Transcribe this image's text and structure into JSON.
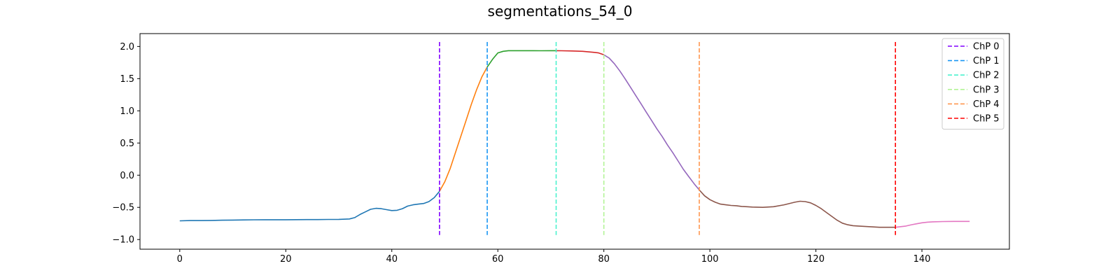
{
  "chart_data": {
    "type": "line",
    "title": "segmentations_54_0",
    "xlabel": "",
    "ylabel": "",
    "xlim": [
      -7.5,
      156.5
    ],
    "ylim": [
      -1.15,
      2.2
    ],
    "x_ticks": [
      0,
      20,
      40,
      60,
      80,
      100,
      120,
      140
    ],
    "y_ticks": [
      -1.0,
      -0.5,
      0.0,
      0.5,
      1.0,
      1.5,
      2.0
    ],
    "grid": false,
    "legend_position": "top-right",
    "series_points": [
      [
        0,
        -0.71
      ],
      [
        2,
        -0.705
      ],
      [
        4,
        -0.705
      ],
      [
        6,
        -0.703
      ],
      [
        8,
        -0.7
      ],
      [
        10,
        -0.697
      ],
      [
        12,
        -0.695
      ],
      [
        14,
        -0.693
      ],
      [
        16,
        -0.692
      ],
      [
        18,
        -0.692
      ],
      [
        20,
        -0.692
      ],
      [
        22,
        -0.691
      ],
      [
        24,
        -0.69
      ],
      [
        26,
        -0.69
      ],
      [
        28,
        -0.688
      ],
      [
        30,
        -0.687
      ],
      [
        32,
        -0.68
      ],
      [
        33,
        -0.66
      ],
      [
        34,
        -0.61
      ],
      [
        35,
        -0.57
      ],
      [
        36,
        -0.53
      ],
      [
        37,
        -0.515
      ],
      [
        38,
        -0.52
      ],
      [
        39,
        -0.535
      ],
      [
        40,
        -0.55
      ],
      [
        41,
        -0.545
      ],
      [
        42,
        -0.52
      ],
      [
        43,
        -0.48
      ],
      [
        44,
        -0.46
      ],
      [
        45,
        -0.45
      ],
      [
        46,
        -0.44
      ],
      [
        47,
        -0.41
      ],
      [
        48,
        -0.35
      ],
      [
        49,
        -0.25
      ],
      [
        50,
        -0.1
      ],
      [
        51,
        0.1
      ],
      [
        52,
        0.35
      ],
      [
        53,
        0.6
      ],
      [
        54,
        0.85
      ],
      [
        55,
        1.1
      ],
      [
        56,
        1.33
      ],
      [
        57,
        1.53
      ],
      [
        58,
        1.68
      ],
      [
        59,
        1.8
      ],
      [
        60,
        1.9
      ],
      [
        61,
        1.925
      ],
      [
        62,
        1.935
      ],
      [
        64,
        1.935
      ],
      [
        66,
        1.935
      ],
      [
        68,
        1.933
      ],
      [
        70,
        1.935
      ],
      [
        71,
        1.935
      ],
      [
        72,
        1.933
      ],
      [
        74,
        1.93
      ],
      [
        76,
        1.925
      ],
      [
        78,
        1.91
      ],
      [
        79,
        1.9
      ],
      [
        80,
        1.87
      ],
      [
        81,
        1.82
      ],
      [
        82,
        1.73
      ],
      [
        83,
        1.62
      ],
      [
        84,
        1.5
      ],
      [
        85,
        1.37
      ],
      [
        86,
        1.24
      ],
      [
        87,
        1.11
      ],
      [
        88,
        0.98
      ],
      [
        89,
        0.85
      ],
      [
        90,
        0.72
      ],
      [
        91,
        0.6
      ],
      [
        92,
        0.47
      ],
      [
        93,
        0.35
      ],
      [
        94,
        0.22
      ],
      [
        95,
        0.09
      ],
      [
        96,
        -0.02
      ],
      [
        97,
        -0.13
      ],
      [
        98,
        -0.23
      ],
      [
        99,
        -0.32
      ],
      [
        100,
        -0.38
      ],
      [
        101,
        -0.42
      ],
      [
        102,
        -0.45
      ],
      [
        103,
        -0.46
      ],
      [
        104,
        -0.47
      ],
      [
        105,
        -0.475
      ],
      [
        106,
        -0.485
      ],
      [
        107,
        -0.49
      ],
      [
        108,
        -0.495
      ],
      [
        110,
        -0.5
      ],
      [
        112,
        -0.49
      ],
      [
        114,
        -0.46
      ],
      [
        116,
        -0.42
      ],
      [
        117,
        -0.405
      ],
      [
        118,
        -0.41
      ],
      [
        119,
        -0.43
      ],
      [
        120,
        -0.47
      ],
      [
        121,
        -0.52
      ],
      [
        122,
        -0.58
      ],
      [
        123,
        -0.64
      ],
      [
        124,
        -0.7
      ],
      [
        125,
        -0.745
      ],
      [
        126,
        -0.77
      ],
      [
        127,
        -0.785
      ],
      [
        128,
        -0.79
      ],
      [
        130,
        -0.8
      ],
      [
        132,
        -0.81
      ],
      [
        134,
        -0.81
      ],
      [
        135,
        -0.81
      ],
      [
        136,
        -0.8
      ],
      [
        137,
        -0.79
      ],
      [
        138,
        -0.77
      ],
      [
        139,
        -0.755
      ],
      [
        140,
        -0.74
      ],
      [
        141,
        -0.73
      ],
      [
        142,
        -0.725
      ],
      [
        144,
        -0.72
      ],
      [
        146,
        -0.718
      ],
      [
        148,
        -0.718
      ],
      [
        149,
        -0.718
      ]
    ],
    "segments": [
      {
        "x_range": [
          0,
          49
        ],
        "color": "#1f77b4"
      },
      {
        "x_range": [
          49,
          58
        ],
        "color": "#ff7f0e"
      },
      {
        "x_range": [
          58,
          71
        ],
        "color": "#2ca02c"
      },
      {
        "x_range": [
          71,
          80
        ],
        "color": "#d62728"
      },
      {
        "x_range": [
          80,
          98
        ],
        "color": "#9467bd"
      },
      {
        "x_range": [
          98,
          135
        ],
        "color": "#8c564b"
      },
      {
        "x_range": [
          135,
          149
        ],
        "color": "#e377c2"
      }
    ],
    "changepoints": [
      {
        "name": "ChP 0",
        "x": 49,
        "color": "#8000ff"
      },
      {
        "name": "ChP 1",
        "x": 58,
        "color": "#1996f3"
      },
      {
        "name": "ChP 2",
        "x": 71,
        "color": "#4cf2ce"
      },
      {
        "name": "ChP 3",
        "x": 80,
        "color": "#b2f396"
      },
      {
        "name": "ChP 4",
        "x": 98,
        "color": "#ff964f"
      },
      {
        "name": "ChP 5",
        "x": 135,
        "color": "#ff0000"
      }
    ],
    "changepoint_ymin": -0.93,
    "changepoint_ymax": 2.07
  }
}
